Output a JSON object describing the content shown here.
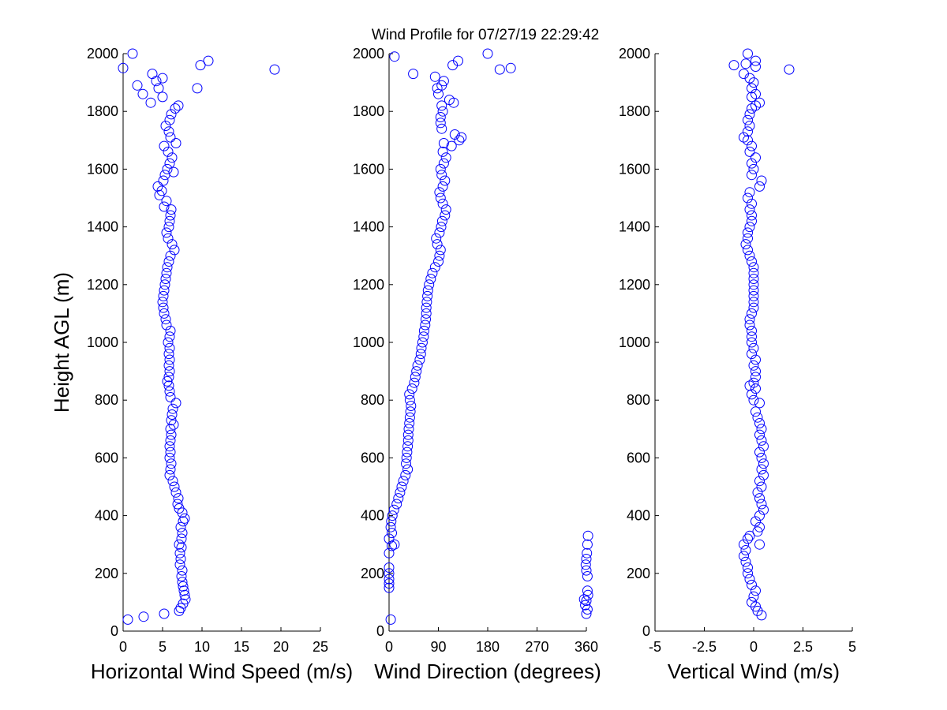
{
  "title": "Wind Profile for  07/27/19 22:29:42",
  "chart_data": [
    {
      "type": "scatter",
      "xlabel": "Horizontal Wind Speed (m/s)",
      "ylabel": "Height AGL (m)",
      "xlim": [
        0,
        25
      ],
      "ylim": [
        0,
        2000
      ],
      "xticks": [
        0,
        5,
        10,
        15,
        20,
        25
      ],
      "xtick_labels": [
        "0",
        "5",
        "10",
        "15",
        "20",
        "25"
      ],
      "yticks": [
        0,
        200,
        400,
        600,
        800,
        1000,
        1200,
        1400,
        1600,
        1800,
        2000
      ],
      "ytick_labels": [
        "0",
        "200",
        "400",
        "600",
        "800",
        "1000",
        "1200",
        "1400",
        "1600",
        "1800",
        "2000"
      ],
      "marker_color": "#0000ff",
      "points": [
        [
          0.6,
          40
        ],
        [
          2.6,
          50
        ],
        [
          5.2,
          60
        ],
        [
          7.1,
          70
        ],
        [
          7.3,
          80
        ],
        [
          7.6,
          95
        ],
        [
          7.9,
          110
        ],
        [
          7.8,
          125
        ],
        [
          7.7,
          140
        ],
        [
          7.6,
          155
        ],
        [
          7.5,
          170
        ],
        [
          7.4,
          190
        ],
        [
          7.5,
          210
        ],
        [
          7.2,
          230
        ],
        [
          7.3,
          250
        ],
        [
          7.2,
          270
        ],
        [
          7.4,
          290
        ],
        [
          7.1,
          300
        ],
        [
          7.4,
          320
        ],
        [
          7.5,
          340
        ],
        [
          7.3,
          360
        ],
        [
          7.6,
          380
        ],
        [
          7.8,
          390
        ],
        [
          7.5,
          410
        ],
        [
          7.1,
          425
        ],
        [
          6.9,
          440
        ],
        [
          7.0,
          460
        ],
        [
          6.7,
          480
        ],
        [
          6.5,
          500
        ],
        [
          6.3,
          520
        ],
        [
          5.9,
          540
        ],
        [
          6.0,
          560
        ],
        [
          6.1,
          580
        ],
        [
          5.9,
          600
        ],
        [
          6.0,
          620
        ],
        [
          5.9,
          640
        ],
        [
          6.0,
          660
        ],
        [
          6.1,
          680
        ],
        [
          6.0,
          700
        ],
        [
          6.4,
          715
        ],
        [
          6.1,
          730
        ],
        [
          6.2,
          750
        ],
        [
          6.3,
          770
        ],
        [
          6.7,
          790
        ],
        [
          6.0,
          810
        ],
        [
          5.9,
          830
        ],
        [
          5.8,
          850
        ],
        [
          5.6,
          865
        ],
        [
          5.8,
          880
        ],
        [
          5.9,
          900
        ],
        [
          5.8,
          920
        ],
        [
          5.9,
          940
        ],
        [
          5.8,
          960
        ],
        [
          5.9,
          980
        ],
        [
          5.7,
          1000
        ],
        [
          5.9,
          1020
        ],
        [
          6.0,
          1040
        ],
        [
          5.5,
          1060
        ],
        [
          5.4,
          1080
        ],
        [
          5.2,
          1100
        ],
        [
          5.1,
          1120
        ],
        [
          5.0,
          1140
        ],
        [
          5.1,
          1160
        ],
        [
          5.2,
          1180
        ],
        [
          5.3,
          1200
        ],
        [
          5.4,
          1220
        ],
        [
          5.5,
          1240
        ],
        [
          5.6,
          1260
        ],
        [
          5.8,
          1280
        ],
        [
          6.0,
          1300
        ],
        [
          6.5,
          1320
        ],
        [
          6.2,
          1340
        ],
        [
          5.7,
          1360
        ],
        [
          5.5,
          1380
        ],
        [
          5.8,
          1400
        ],
        [
          5.9,
          1420
        ],
        [
          6.0,
          1440
        ],
        [
          6.1,
          1460
        ],
        [
          5.2,
          1470
        ],
        [
          5.5,
          1490
        ],
        [
          4.6,
          1510
        ],
        [
          4.9,
          1525
        ],
        [
          4.4,
          1540
        ],
        [
          5.1,
          1560
        ],
        [
          5.3,
          1580
        ],
        [
          6.4,
          1590
        ],
        [
          5.6,
          1600
        ],
        [
          5.9,
          1620
        ],
        [
          6.2,
          1640
        ],
        [
          5.7,
          1660
        ],
        [
          5.2,
          1680
        ],
        [
          6.7,
          1690
        ],
        [
          6.0,
          1710
        ],
        [
          5.8,
          1730
        ],
        [
          5.4,
          1750
        ],
        [
          5.9,
          1770
        ],
        [
          6.1,
          1790
        ],
        [
          6.6,
          1810
        ],
        [
          7.0,
          1820
        ],
        [
          3.5,
          1830
        ],
        [
          2.5,
          1860
        ],
        [
          5.0,
          1850
        ],
        [
          1.8,
          1890
        ],
        [
          4.5,
          1880
        ],
        [
          4.2,
          1905
        ],
        [
          5.0,
          1915
        ],
        [
          3.7,
          1930
        ],
        [
          9.4,
          1880
        ],
        [
          0.0,
          1950
        ],
        [
          1.2,
          2000
        ],
        [
          9.8,
          1960
        ],
        [
          10.8,
          1975
        ],
        [
          19.2,
          1945
        ]
      ]
    },
    {
      "type": "scatter",
      "xlabel": "Wind Direction (degrees)",
      "xlim": [
        0,
        360
      ],
      "ylim": [
        0,
        2000
      ],
      "xticks": [
        0,
        90,
        180,
        270,
        360
      ],
      "xtick_labels": [
        "0",
        "90",
        "180",
        "270",
        "360"
      ],
      "yticks": [
        0,
        200,
        400,
        600,
        800,
        1000,
        1200,
        1400,
        1600,
        1800,
        2000
      ],
      "ytick_labels": [
        "0",
        "200",
        "400",
        "600",
        "800",
        "1000",
        "1200",
        "1400",
        "1600",
        "1800",
        "2000"
      ],
      "marker_color": "#0000ff",
      "points": [
        [
          3,
          40
        ],
        [
          0,
          150
        ],
        [
          0,
          165
        ],
        [
          0,
          180
        ],
        [
          0,
          200
        ],
        [
          0,
          220
        ],
        [
          0,
          270
        ],
        [
          5,
          295
        ],
        [
          10,
          300
        ],
        [
          0,
          320
        ],
        [
          5,
          340
        ],
        [
          3,
          360
        ],
        [
          4,
          380
        ],
        [
          6,
          400
        ],
        [
          9,
          420
        ],
        [
          14,
          440
        ],
        [
          17,
          460
        ],
        [
          20,
          480
        ],
        [
          23,
          500
        ],
        [
          26,
          520
        ],
        [
          30,
          540
        ],
        [
          34,
          560
        ],
        [
          31,
          580
        ],
        [
          32,
          600
        ],
        [
          33,
          620
        ],
        [
          34,
          640
        ],
        [
          35,
          660
        ],
        [
          35,
          680
        ],
        [
          36,
          700
        ],
        [
          37,
          720
        ],
        [
          38,
          740
        ],
        [
          39,
          760
        ],
        [
          40,
          780
        ],
        [
          38,
          800
        ],
        [
          37,
          820
        ],
        [
          42,
          840
        ],
        [
          46,
          860
        ],
        [
          48,
          880
        ],
        [
          50,
          900
        ],
        [
          52,
          920
        ],
        [
          56,
          940
        ],
        [
          58,
          960
        ],
        [
          59,
          980
        ],
        [
          61,
          1000
        ],
        [
          63,
          1020
        ],
        [
          64,
          1040
        ],
        [
          66,
          1060
        ],
        [
          67,
          1080
        ],
        [
          68,
          1100
        ],
        [
          68,
          1120
        ],
        [
          69,
          1140
        ],
        [
          70,
          1160
        ],
        [
          71,
          1180
        ],
        [
          73,
          1200
        ],
        [
          76,
          1220
        ],
        [
          79,
          1240
        ],
        [
          84,
          1260
        ],
        [
          90,
          1280
        ],
        [
          92,
          1300
        ],
        [
          94,
          1320
        ],
        [
          88,
          1340
        ],
        [
          86,
          1360
        ],
        [
          92,
          1380
        ],
        [
          95,
          1400
        ],
        [
          97,
          1420
        ],
        [
          102,
          1440
        ],
        [
          104,
          1460
        ],
        [
          98,
          1480
        ],
        [
          94,
          1500
        ],
        [
          92,
          1520
        ],
        [
          98,
          1540
        ],
        [
          102,
          1560
        ],
        [
          96,
          1580
        ],
        [
          94,
          1600
        ],
        [
          100,
          1620
        ],
        [
          104,
          1640
        ],
        [
          98,
          1660
        ],
        [
          114,
          1680
        ],
        [
          100,
          1690
        ],
        [
          128,
          1700
        ],
        [
          132,
          1710
        ],
        [
          120,
          1720
        ],
        [
          96,
          1740
        ],
        [
          94,
          1760
        ],
        [
          94,
          1780
        ],
        [
          98,
          1800
        ],
        [
          96,
          1820
        ],
        [
          118,
          1830
        ],
        [
          110,
          1840
        ],
        [
          90,
          1860
        ],
        [
          88,
          1880
        ],
        [
          96,
          1890
        ],
        [
          100,
          1905
        ],
        [
          84,
          1920
        ],
        [
          44,
          1930
        ],
        [
          202,
          1945
        ],
        [
          222,
          1950
        ],
        [
          116,
          1960
        ],
        [
          126,
          1975
        ],
        [
          10,
          1990
        ],
        [
          180,
          2000
        ],
        [
          360,
          60
        ],
        [
          362,
          75
        ],
        [
          358,
          90
        ],
        [
          360,
          105
        ],
        [
          356,
          110
        ],
        [
          363,
          125
        ],
        [
          362,
          140
        ],
        [
          362,
          190
        ],
        [
          360,
          210
        ],
        [
          359,
          230
        ],
        [
          360,
          250
        ],
        [
          361,
          270
        ],
        [
          362,
          300
        ],
        [
          363,
          330
        ]
      ]
    },
    {
      "type": "scatter",
      "xlabel": "Vertical Wind (m/s)",
      "xlim": [
        -5,
        5
      ],
      "ylim": [
        0,
        2000
      ],
      "xticks": [
        -5,
        -2.5,
        0,
        2.5,
        5
      ],
      "xtick_labels": [
        "-5",
        "-2.5",
        "0",
        "2.5",
        "5"
      ],
      "yticks": [
        0,
        200,
        400,
        600,
        800,
        1000,
        1200,
        1400,
        1600,
        1800,
        2000
      ],
      "ytick_labels": [
        "0",
        "200",
        "400",
        "600",
        "800",
        "1000",
        "1200",
        "1400",
        "1600",
        "1800",
        "2000"
      ],
      "marker_color": "#0000ff",
      "points": [
        [
          0.4,
          55
        ],
        [
          0.2,
          70
        ],
        [
          0.1,
          85
        ],
        [
          -0.1,
          100
        ],
        [
          0.0,
          120
        ],
        [
          0.1,
          140
        ],
        [
          -0.1,
          160
        ],
        [
          -0.2,
          180
        ],
        [
          -0.3,
          200
        ],
        [
          -0.3,
          220
        ],
        [
          -0.4,
          240
        ],
        [
          -0.5,
          260
        ],
        [
          -0.4,
          280
        ],
        [
          0.3,
          300
        ],
        [
          -0.5,
          300
        ],
        [
          -0.3,
          320
        ],
        [
          -0.2,
          330
        ],
        [
          0.2,
          345
        ],
        [
          0.3,
          360
        ],
        [
          0.1,
          380
        ],
        [
          0.3,
          400
        ],
        [
          0.5,
          420
        ],
        [
          0.4,
          440
        ],
        [
          0.3,
          460
        ],
        [
          0.2,
          480
        ],
        [
          0.4,
          500
        ],
        [
          0.3,
          520
        ],
        [
          0.5,
          540
        ],
        [
          0.4,
          560
        ],
        [
          0.5,
          580
        ],
        [
          0.4,
          600
        ],
        [
          0.3,
          620
        ],
        [
          0.5,
          640
        ],
        [
          0.4,
          660
        ],
        [
          0.3,
          680
        ],
        [
          0.4,
          700
        ],
        [
          0.3,
          720
        ],
        [
          0.2,
          740
        ],
        [
          0.1,
          760
        ],
        [
          0.3,
          790
        ],
        [
          0.0,
          800
        ],
        [
          -0.1,
          820
        ],
        [
          0.1,
          840
        ],
        [
          -0.2,
          850
        ],
        [
          0.0,
          860
        ],
        [
          0.1,
          880
        ],
        [
          0.1,
          900
        ],
        [
          0.0,
          920
        ],
        [
          0.1,
          940
        ],
        [
          -0.1,
          960
        ],
        [
          0.0,
          980
        ],
        [
          -0.1,
          1000
        ],
        [
          -0.1,
          1020
        ],
        [
          -0.1,
          1040
        ],
        [
          -0.2,
          1060
        ],
        [
          -0.2,
          1080
        ],
        [
          -0.1,
          1100
        ],
        [
          0.0,
          1120
        ],
        [
          0.0,
          1140
        ],
        [
          0.0,
          1160
        ],
        [
          0.0,
          1180
        ],
        [
          0.0,
          1200
        ],
        [
          0.0,
          1220
        ],
        [
          0.0,
          1240
        ],
        [
          0.0,
          1260
        ],
        [
          -0.1,
          1280
        ],
        [
          -0.2,
          1300
        ],
        [
          -0.3,
          1320
        ],
        [
          -0.4,
          1340
        ],
        [
          -0.3,
          1360
        ],
        [
          -0.3,
          1380
        ],
        [
          -0.2,
          1400
        ],
        [
          -0.1,
          1420
        ],
        [
          -0.1,
          1440
        ],
        [
          -0.2,
          1460
        ],
        [
          -0.1,
          1480
        ],
        [
          -0.3,
          1500
        ],
        [
          -0.2,
          1520
        ],
        [
          0.3,
          1540
        ],
        [
          0.4,
          1560
        ],
        [
          -0.1,
          1580
        ],
        [
          0.0,
          1600
        ],
        [
          -0.1,
          1620
        ],
        [
          0.1,
          1640
        ],
        [
          -0.2,
          1660
        ],
        [
          -0.1,
          1680
        ],
        [
          -0.3,
          1700
        ],
        [
          -0.5,
          1710
        ],
        [
          -0.3,
          1730
        ],
        [
          -0.2,
          1750
        ],
        [
          -0.3,
          1770
        ],
        [
          -0.2,
          1790
        ],
        [
          -0.1,
          1810
        ],
        [
          0.1,
          1820
        ],
        [
          0.3,
          1830
        ],
        [
          -0.1,
          1850
        ],
        [
          0.1,
          1860
        ],
        [
          -0.1,
          1880
        ],
        [
          0.0,
          1900
        ],
        [
          -0.2,
          1915
        ],
        [
          -0.5,
          1930
        ],
        [
          -1.0,
          1960
        ],
        [
          0.1,
          1955
        ],
        [
          -0.4,
          1965
        ],
        [
          0.1,
          1975
        ],
        [
          -0.3,
          2000
        ],
        [
          1.8,
          1945
        ]
      ]
    }
  ]
}
